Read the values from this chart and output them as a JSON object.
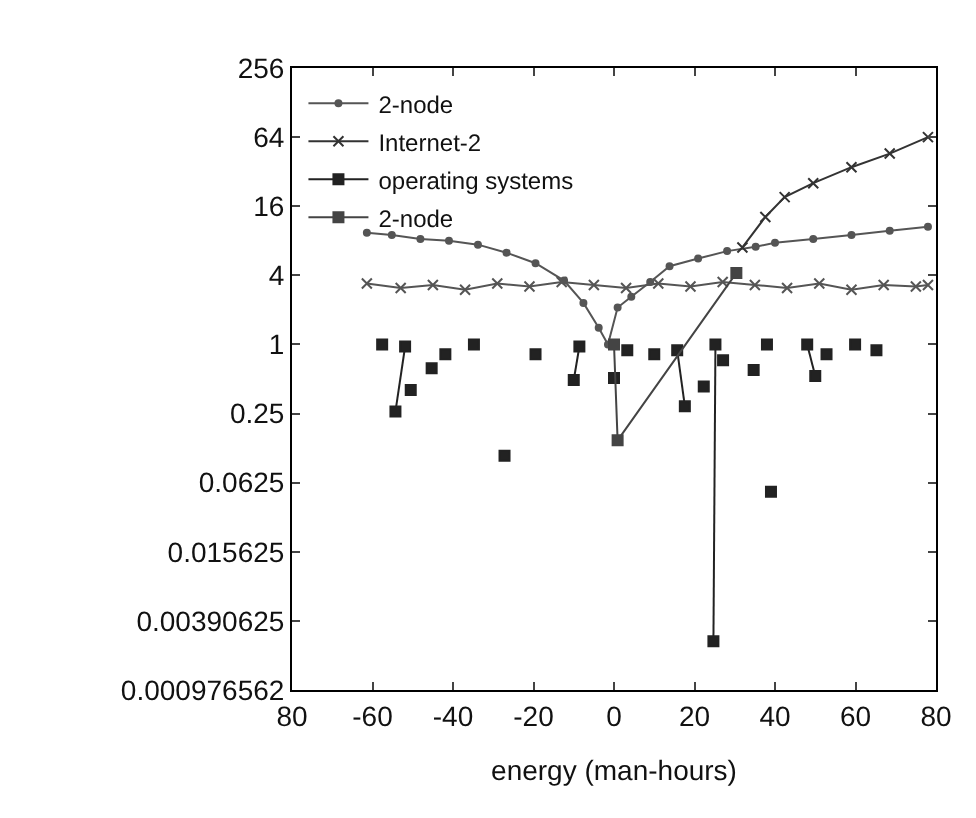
{
  "chart_data": {
    "type": "line",
    "xlabel": "energy (man-hours)",
    "xlim": [
      -80,
      80
    ],
    "xticks": [
      {
        "value": -80,
        "label": "80"
      },
      -60,
      -40,
      -20,
      0,
      20,
      40,
      60,
      80
    ],
    "ylim": [
      0.000976562,
      256
    ],
    "yticks": [
      0.000976562,
      0.00390625,
      0.015625,
      0.0625,
      0.25,
      1,
      4,
      16,
      64,
      256
    ],
    "log": "y",
    "legend": "top left",
    "line_style": "solid",
    "series": [
      {
        "name": "2-node",
        "color": "#555555",
        "marker": "circle",
        "x": [
          -61.4,
          -55.2,
          -48.1,
          -41.0,
          -33.8,
          -26.7,
          -19.5,
          -12.4,
          -7.6,
          -3.8,
          -1.5,
          0.9,
          4.3,
          9.0,
          13.8,
          20.9,
          28.1,
          35.2,
          40.0,
          49.5,
          59.0,
          68.5,
          78.0
        ],
        "values": [
          9.4,
          9.0,
          8.3,
          8.0,
          7.4,
          6.3,
          5.1,
          3.6,
          2.3,
          1.4,
          1.0,
          2.1,
          2.6,
          3.5,
          4.8,
          5.6,
          6.5,
          7.1,
          7.7,
          8.3,
          9.0,
          9.8,
          10.6
        ]
      },
      {
        "name": "Internet-2",
        "color": "#333333",
        "marker": "cross",
        "x": [
          31.9,
          37.6,
          42.4,
          49.5,
          59.0,
          68.5,
          78.0
        ],
        "values": [
          7.0,
          12.9,
          19.2,
          25.4,
          35,
          46,
          64
        ]
      },
      {
        "name": "operating systems",
        "color": "#222222",
        "marker": "square",
        "x": [
          -57.6,
          null,
          -51.9,
          -54.3,
          null,
          -50.5,
          null,
          -45.3,
          null,
          -41.9,
          null,
          -34.8,
          null,
          -27.2,
          null,
          -19.5,
          null,
          -8.6,
          -10.0,
          null,
          0.0,
          null,
          3.3,
          null,
          10.0,
          null,
          15.7,
          17.6,
          null,
          22.3,
          null,
          25.2,
          24.7,
          null,
          27.1,
          null,
          34.7,
          null,
          38.0,
          null,
          39.0,
          null,
          48.0,
          50.0,
          null,
          52.8,
          null,
          59.9,
          null,
          65.2
        ],
        "values": [
          1.0,
          null,
          0.96,
          0.26,
          null,
          0.4,
          null,
          0.62,
          null,
          0.82,
          null,
          1.0,
          null,
          0.107,
          null,
          0.82,
          null,
          0.96,
          0.49,
          null,
          0.51,
          null,
          0.89,
          null,
          0.82,
          null,
          0.89,
          0.29,
          null,
          0.43,
          null,
          1.0,
          0.0026,
          null,
          0.73,
          null,
          0.6,
          null,
          1.0,
          null,
          0.052,
          null,
          1.0,
          0.53,
          null,
          0.82,
          null,
          1.0,
          null,
          0.89
        ]
      },
      {
        "name": "2-node",
        "color": "#444444",
        "marker": "square",
        "x": [
          0.0,
          0.9,
          30.4
        ],
        "values": [
          1.0,
          0.146,
          4.2
        ]
      },
      {
        "color": "#555555",
        "marker": "cross",
        "x": [
          -61.4,
          -53,
          -45,
          -37,
          -29,
          -21,
          -13,
          -5,
          3,
          11,
          19,
          27,
          35,
          43,
          51,
          59,
          67,
          75,
          78
        ],
        "values": [
          3.4,
          3.1,
          3.3,
          3.0,
          3.4,
          3.2,
          3.5,
          3.3,
          3.1,
          3.4,
          3.2,
          3.5,
          3.3,
          3.1,
          3.4,
          3.0,
          3.3,
          3.2,
          3.3
        ]
      }
    ]
  }
}
